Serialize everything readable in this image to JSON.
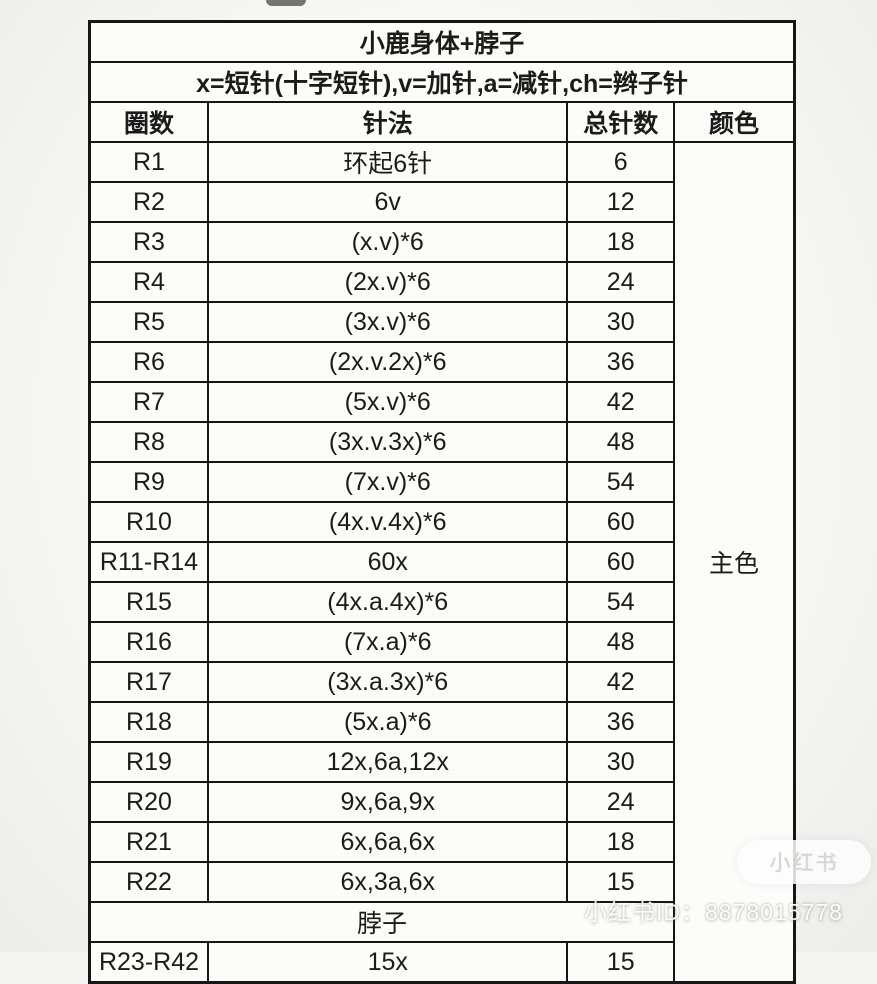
{
  "page": {
    "background": "#f4f4f2",
    "header_bg": "#a6c3e1",
    "border_color": "#161616"
  },
  "table": {
    "title": "小鹿身体+脖子",
    "legend": "x=短针(十字短针),v=加针,a=减针,ch=辫子针",
    "headers": {
      "round": "圈数",
      "stitch": "针法",
      "total": "总针数",
      "color": "颜色"
    },
    "color_label": "主色",
    "section_label": "脖子",
    "rows": [
      {
        "round": "R1",
        "stitch": "环起6针",
        "total": "6"
      },
      {
        "round": "R2",
        "stitch": "6v",
        "total": "12"
      },
      {
        "round": "R3",
        "stitch": "(x.v)*6",
        "total": "18"
      },
      {
        "round": "R4",
        "stitch": "(2x.v)*6",
        "total": "24"
      },
      {
        "round": "R5",
        "stitch": "(3x.v)*6",
        "total": "30"
      },
      {
        "round": "R6",
        "stitch": "(2x.v.2x)*6",
        "total": "36"
      },
      {
        "round": "R7",
        "stitch": "(5x.v)*6",
        "total": "42"
      },
      {
        "round": "R8",
        "stitch": "(3x.v.3x)*6",
        "total": "48"
      },
      {
        "round": "R9",
        "stitch": "(7x.v)*6",
        "total": "54"
      },
      {
        "round": "R10",
        "stitch": "(4x.v.4x)*6",
        "total": "60"
      },
      {
        "round": "R11-R14",
        "stitch": "60x",
        "total": "60"
      },
      {
        "round": "R15",
        "stitch": "(4x.a.4x)*6",
        "total": "54"
      },
      {
        "round": "R16",
        "stitch": "(7x.a)*6",
        "total": "48"
      },
      {
        "round": "R17",
        "stitch": "(3x.a.3x)*6",
        "total": "42"
      },
      {
        "round": "R18",
        "stitch": "(5x.a)*6",
        "total": "36"
      },
      {
        "round": "R19",
        "stitch": "12x,6a,12x",
        "total": "30"
      },
      {
        "round": "R20",
        "stitch": "9x,6a,9x",
        "total": "24"
      },
      {
        "round": "R21",
        "stitch": "6x,6a,6x",
        "total": "18"
      },
      {
        "round": "R22",
        "stitch": "6x,3a,6x",
        "total": "15"
      }
    ],
    "neck_row": {
      "round": "R23-R42",
      "stitch": "15x",
      "total": "15"
    }
  },
  "watermarks": {
    "badge": "小红书",
    "id_text": "小红书ID：8878015778"
  }
}
